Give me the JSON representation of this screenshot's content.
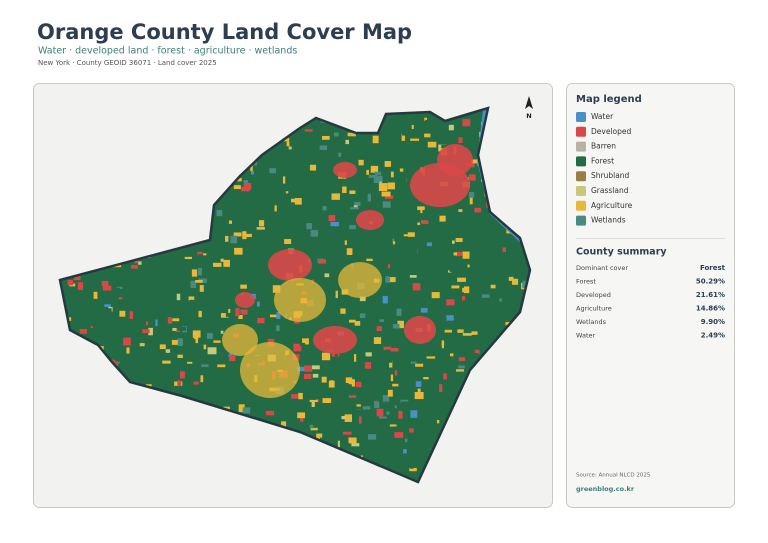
{
  "map": {
    "title": "Orange County Land Cover Map",
    "subtitle": "Water · developed land · forest · agriculture · wetlands",
    "meta": "New York · County GEOID 36071 · Land cover 2025",
    "north": "N"
  },
  "legend": {
    "title": "Map legend",
    "items": [
      {
        "label": "Water",
        "color": "#4a90c8"
      },
      {
        "label": "Developed",
        "color": "#d94848"
      },
      {
        "label": "Barren",
        "color": "#b8b2a2"
      },
      {
        "label": "Forest",
        "color": "#226b45"
      },
      {
        "label": "Shrubland",
        "color": "#9a7d45"
      },
      {
        "label": "Grassland",
        "color": "#c8c87a"
      },
      {
        "label": "Agriculture",
        "color": "#e8b83a"
      },
      {
        "label": "Wetlands",
        "color": "#4a8a80"
      }
    ]
  },
  "summary": {
    "title": "County summary",
    "rows": [
      [
        "Dominant cover",
        "Forest"
      ],
      [
        "Forest",
        "50.29%"
      ],
      [
        "Developed",
        "21.61%"
      ],
      [
        "Agriculture",
        "14.86%"
      ],
      [
        "Wetlands",
        "9.90%"
      ],
      [
        "Water",
        "2.49%"
      ]
    ]
  },
  "footer": {
    "source": "Source: Annual NLCD 2025",
    "site": "greenblog.co.kr"
  }
}
